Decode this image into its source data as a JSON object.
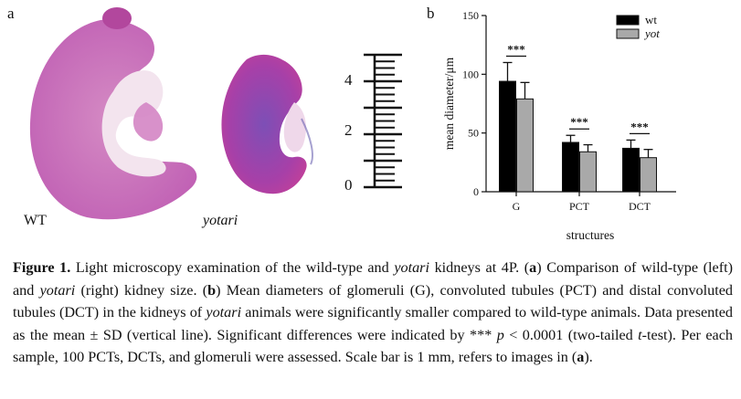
{
  "panel_a": {
    "letter": "a",
    "label_wt": "WT",
    "label_yot": "yotari",
    "scale_bar": {
      "ticks": [
        "4",
        "2",
        "0"
      ]
    }
  },
  "panel_b": {
    "letter": "b"
  },
  "chart_data": {
    "type": "bar",
    "categories": [
      "G",
      "PCT",
      "DCT"
    ],
    "series": [
      {
        "name": "wt",
        "values": [
          94,
          42,
          37
        ],
        "sd": [
          16,
          6,
          7
        ],
        "color": "#000000"
      },
      {
        "name": "yot",
        "values": [
          79,
          34,
          29
        ],
        "sd": [
          14,
          6,
          7
        ],
        "color": "#a9a9a9"
      }
    ],
    "ylabel": "mean diameter/μm",
    "xlabel": "structures",
    "ylim": [
      0,
      150
    ],
    "yticks": [
      "0",
      "50",
      "100",
      "150"
    ],
    "significance": [
      "***",
      "***",
      "***"
    ],
    "legend_position": "top-right"
  },
  "caption": {
    "figure_label": "Figure 1.",
    "s1": " Light microscopy examination of the wild-type and ",
    "s2": "yotari",
    "s3": " kidneys at 4P. (",
    "s4": "a",
    "s5": ") Comparison of wild-type (left) and ",
    "s6": "yotari",
    "s7": " (right) kidney size. (",
    "s8": "b",
    "s9": ") Mean diameters of glomeruli (G), convoluted tubules (PCT) and distal convoluted tubules (DCT) in the kidneys of ",
    "s10": "yotari",
    "s11": " animals were significantly smaller compared to wild-type animals. Data presented as the mean ± SD (vertical line). Significant differences were indicated by *** ",
    "s12": "p",
    "s13": " < 0.0001 (two-tailed ",
    "s14": "t",
    "s15": "-test). Per each sample, 100 PCTs, DCTs, and glomeruli were assessed. Scale bar is 1 mm, refers to images in (",
    "s16": "a",
    "s17": ")."
  }
}
